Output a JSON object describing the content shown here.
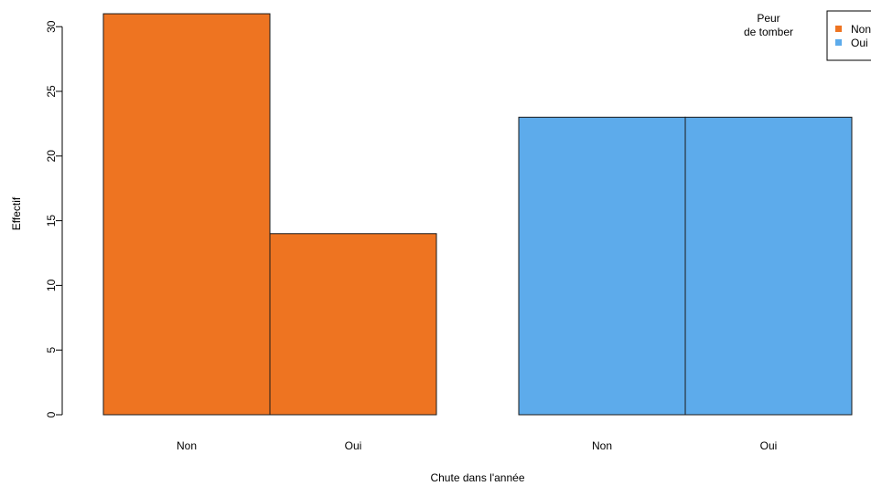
{
  "chart_data": {
    "type": "bar",
    "title": "",
    "xlabel": "Chute dans l'année",
    "ylabel": "Effectif",
    "ylim": [
      0,
      31
    ],
    "yticks": [
      0,
      5,
      10,
      15,
      20,
      25,
      30
    ],
    "grid": false,
    "legend": {
      "title": "Peur de tomber",
      "title_lines": [
        "Peur",
        "de tomber"
      ],
      "placement": "top-right",
      "entries": [
        {
          "label": "Non",
          "color": "#EE7421"
        },
        {
          "label": "Oui",
          "color": "#5DABEB"
        }
      ]
    },
    "categories": [
      "Non",
      "Oui",
      "Non",
      "Oui"
    ],
    "values": [
      31,
      14,
      23,
      23
    ],
    "colors": [
      "#EE7421",
      "#EE7421",
      "#5DABEB",
      "#5DABEB"
    ]
  }
}
